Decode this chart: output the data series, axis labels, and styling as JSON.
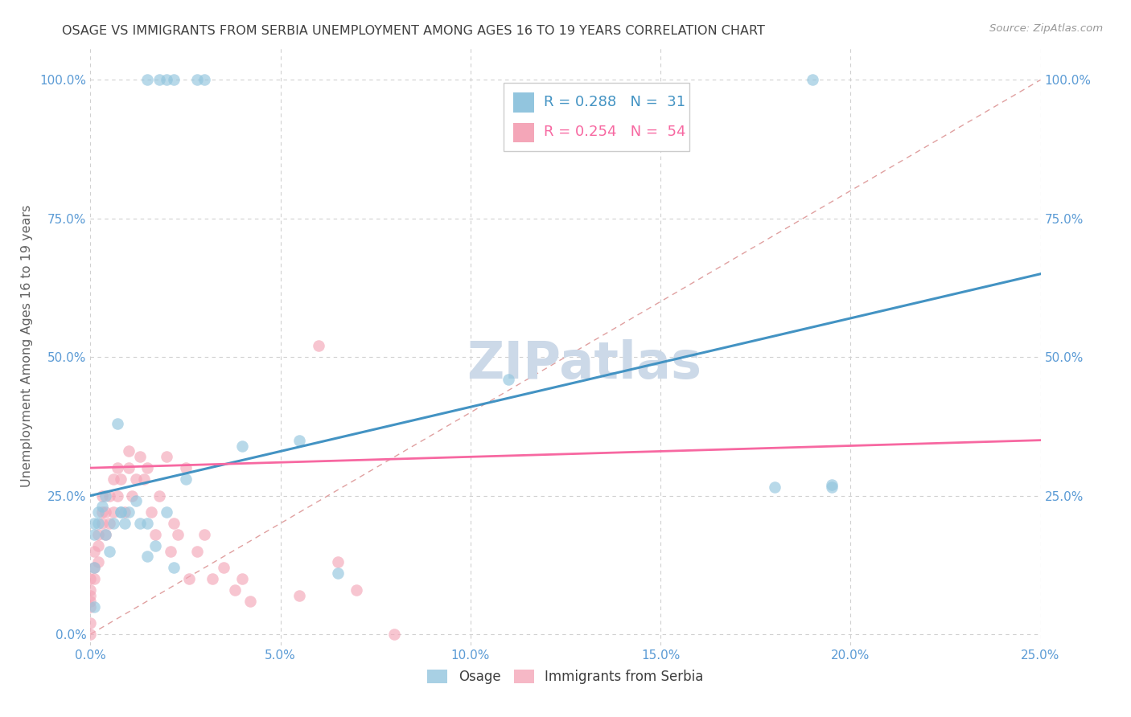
{
  "title": "OSAGE VS IMMIGRANTS FROM SERBIA UNEMPLOYMENT AMONG AGES 16 TO 19 YEARS CORRELATION CHART",
  "source": "Source: ZipAtlas.com",
  "xlabel_ticks": [
    "0.0%",
    "5.0%",
    "10.0%",
    "15.0%",
    "20.0%",
    "25.0%"
  ],
  "xlabel_vals": [
    0.0,
    0.05,
    0.1,
    0.15,
    0.2,
    0.25
  ],
  "ylabel_ticks": [
    "0.0%",
    "25.0%",
    "50.0%",
    "75.0%",
    "100.0%"
  ],
  "ylabel_vals": [
    0.0,
    0.25,
    0.5,
    0.75,
    1.0
  ],
  "ylabel_right_labels": [
    "25.0%",
    "50.0%",
    "75.0%",
    "100.0%"
  ],
  "ylabel_right_vals": [
    0.25,
    0.5,
    0.75,
    1.0
  ],
  "ylabel_label": "Unemployment Among Ages 16 to 19 years",
  "legend_blue_label": "Osage",
  "legend_pink_label": "Immigrants from Serbia",
  "legend_blue_R": "R = 0.288",
  "legend_blue_N": "N =  31",
  "legend_pink_R": "R = 0.254",
  "legend_pink_N": "N =  54",
  "blue_color": "#92c5de",
  "pink_color": "#f4a6b8",
  "blue_trend_color": "#4393c3",
  "pink_trend_color": "#f768a1",
  "diag_line_color": "#e0a0a0",
  "grid_color": "#d0d0d0",
  "tick_label_color": "#5b9bd5",
  "title_color": "#404040",
  "ylabel_color": "#606060",
  "watermark_color": "#ccd9e8",
  "osage_x": [
    0.001,
    0.001,
    0.001,
    0.001,
    0.002,
    0.002,
    0.003,
    0.004,
    0.004,
    0.005,
    0.006,
    0.007,
    0.008,
    0.008,
    0.009,
    0.01,
    0.012,
    0.013,
    0.015,
    0.015,
    0.017,
    0.02,
    0.022,
    0.025,
    0.04,
    0.055,
    0.065,
    0.11,
    0.18,
    0.195,
    0.195
  ],
  "osage_y": [
    0.05,
    0.12,
    0.18,
    0.2,
    0.2,
    0.22,
    0.23,
    0.25,
    0.18,
    0.15,
    0.2,
    0.38,
    0.22,
    0.22,
    0.2,
    0.22,
    0.24,
    0.2,
    0.14,
    0.2,
    0.16,
    0.22,
    0.12,
    0.28,
    0.34,
    0.35,
    0.11,
    0.46,
    0.265,
    0.27,
    0.265
  ],
  "top_osage_x": [
    0.015,
    0.018,
    0.02,
    0.022,
    0.028,
    0.03,
    0.19
  ],
  "top_osage_y": [
    1.0,
    1.0,
    1.0,
    1.0,
    1.0,
    1.0,
    1.0
  ],
  "serbia_x": [
    0.0,
    0.0,
    0.0,
    0.0,
    0.0,
    0.0,
    0.0,
    0.001,
    0.001,
    0.001,
    0.002,
    0.002,
    0.002,
    0.003,
    0.003,
    0.003,
    0.004,
    0.004,
    0.005,
    0.005,
    0.006,
    0.006,
    0.007,
    0.007,
    0.008,
    0.009,
    0.01,
    0.01,
    0.011,
    0.012,
    0.013,
    0.014,
    0.015,
    0.016,
    0.017,
    0.018,
    0.02,
    0.021,
    0.022,
    0.023,
    0.025,
    0.026,
    0.028,
    0.03,
    0.032,
    0.035,
    0.038,
    0.04,
    0.042,
    0.055,
    0.06,
    0.065,
    0.07,
    0.08
  ],
  "serbia_y": [
    0.0,
    0.02,
    0.05,
    0.06,
    0.07,
    0.08,
    0.1,
    0.1,
    0.12,
    0.15,
    0.13,
    0.16,
    0.18,
    0.2,
    0.22,
    0.25,
    0.18,
    0.22,
    0.2,
    0.25,
    0.22,
    0.28,
    0.25,
    0.3,
    0.28,
    0.22,
    0.3,
    0.33,
    0.25,
    0.28,
    0.32,
    0.28,
    0.3,
    0.22,
    0.18,
    0.25,
    0.32,
    0.15,
    0.2,
    0.18,
    0.3,
    0.1,
    0.15,
    0.18,
    0.1,
    0.12,
    0.08,
    0.1,
    0.06,
    0.07,
    0.52,
    0.13,
    0.08,
    0.0
  ],
  "blue_trendline": [
    0.25,
    0.65
  ],
  "pink_trendline": [
    0.3,
    0.35
  ],
  "xlim": [
    0.0,
    0.25
  ],
  "ylim": [
    -0.02,
    1.06
  ]
}
